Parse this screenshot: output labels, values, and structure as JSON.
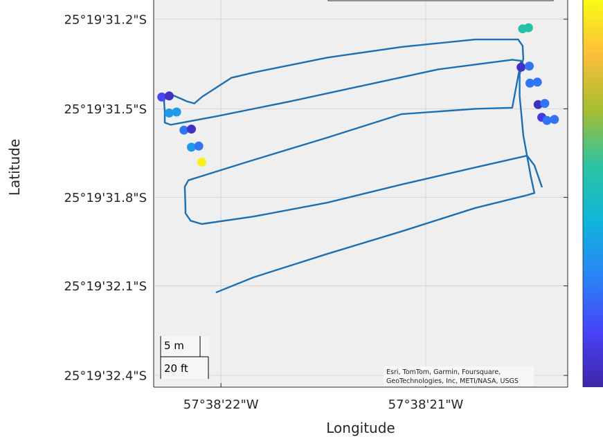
{
  "chart_data": {
    "type": "scatter",
    "title": "",
    "xlabel": "Longitude",
    "ylabel": "Latitude",
    "xlim_deg": [
      -57.639535,
      -57.638975
    ],
    "ylim_deg": [
      -25.325678,
      -25.325315
    ],
    "x_ticks": [
      {
        "value": -57.639444,
        "label": "57°38'22\"W"
      },
      {
        "value": -57.639167,
        "label": "57°38'21\"W"
      }
    ],
    "y_ticks": [
      {
        "value": -25.325333,
        "label": "25°19'31.2\"S"
      },
      {
        "value": -25.325417,
        "label": "25°19'31.5\"S"
      },
      {
        "value": -25.3255,
        "label": "25°19'31.8\"S"
      },
      {
        "value": -25.325583,
        "label": "25°19'32.1\"S"
      },
      {
        "value": -25.325667,
        "label": "25°19'32.4\"S"
      }
    ],
    "grid": true,
    "basemap_color": "#efefef",
    "colorbar": {
      "location": "right",
      "colors": [
        "#3e26a8",
        "#4743f8",
        "#2a84f4",
        "#10b5da",
        "#2bc3a2",
        "#a5be31",
        "#fbbe3a",
        "#f9fb14"
      ]
    },
    "track": {
      "color": "#1a6fb5",
      "points": [
        [
          -57.63945,
          -25.325589
        ],
        [
          -57.6394,
          -25.325575
        ],
        [
          -57.6393,
          -25.325553
        ],
        [
          -57.6392,
          -25.325532
        ],
        [
          -57.6391,
          -25.32551
        ],
        [
          -57.63903,
          -25.325498
        ],
        [
          -57.63902,
          -25.325496
        ],
        [
          -57.639025,
          -25.32548
        ],
        [
          -57.639035,
          -25.325442
        ],
        [
          -57.63904,
          -25.325405
        ],
        [
          -57.63904,
          -25.325385
        ],
        [
          -57.639035,
          -25.32537
        ],
        [
          -57.639036,
          -25.325358
        ],
        [
          -57.639042,
          -25.325352
        ],
        [
          -57.6391,
          -25.325352
        ],
        [
          -57.6392,
          -25.325359
        ],
        [
          -57.6393,
          -25.325369
        ],
        [
          -57.6394,
          -25.325383
        ],
        [
          -57.63943,
          -25.325388
        ],
        [
          -57.63947,
          -25.325406
        ],
        [
          -57.63948,
          -25.325412
        ],
        [
          -57.63949,
          -25.32541
        ],
        [
          -57.63951,
          -25.325404
        ],
        [
          -57.63952,
          -25.325404
        ],
        [
          -57.639521,
          -25.32541
        ],
        [
          -57.63952,
          -25.32542
        ],
        [
          -57.63952,
          -25.32543
        ],
        [
          -57.639512,
          -25.325432
        ],
        [
          -57.63945,
          -25.325424
        ],
        [
          -57.63935,
          -25.32541
        ],
        [
          -57.63925,
          -25.325395
        ],
        [
          -57.63915,
          -25.32538
        ],
        [
          -57.63905,
          -25.325371
        ],
        [
          -57.639038,
          -25.325372
        ],
        [
          -57.63905,
          -25.325416
        ],
        [
          -57.6391,
          -25.325417
        ],
        [
          -57.6392,
          -25.325422
        ],
        [
          -57.6393,
          -25.325444
        ],
        [
          -57.6394,
          -25.325465
        ],
        [
          -57.639488,
          -25.325484
        ],
        [
          -57.639493,
          -25.32549
        ],
        [
          -57.639492,
          -25.32551
        ],
        [
          -57.639492,
          -25.325515
        ],
        [
          -57.639485,
          -25.325522
        ],
        [
          -57.63947,
          -25.325525
        ],
        [
          -57.6394,
          -25.325518
        ],
        [
          -57.6393,
          -25.325505
        ],
        [
          -57.6392,
          -25.325488
        ],
        [
          -57.6391,
          -25.325472
        ],
        [
          -57.63903,
          -25.325461
        ],
        [
          -57.63902,
          -25.32547
        ],
        [
          -57.63901,
          -25.32549
        ]
      ]
    },
    "points": [
      {
        "lon": -57.639036,
        "lat": -25.325342,
        "level": 0.55
      },
      {
        "lon": -57.639028,
        "lat": -25.325341,
        "level": 0.55
      },
      {
        "lon": -57.639038,
        "lat": -25.325378,
        "level": 0.05
      },
      {
        "lon": -57.639027,
        "lat": -25.325377,
        "level": 0.25
      },
      {
        "lon": -57.639026,
        "lat": -25.325393,
        "level": 0.25
      },
      {
        "lon": -57.639016,
        "lat": -25.325392,
        "level": 0.25
      },
      {
        "lon": -57.639015,
        "lat": -25.325413,
        "level": 0.05
      },
      {
        "lon": -57.639006,
        "lat": -25.325412,
        "level": 0.25
      },
      {
        "lon": -57.63901,
        "lat": -25.325425,
        "level": 0.1
      },
      {
        "lon": -57.639003,
        "lat": -25.325428,
        "level": 0.25
      },
      {
        "lon": -57.638993,
        "lat": -25.325427,
        "level": 0.25
      },
      {
        "lon": -57.639524,
        "lat": -25.325406,
        "level": 0.15
      },
      {
        "lon": -57.639514,
        "lat": -25.325405,
        "level": 0.05
      },
      {
        "lon": -57.639514,
        "lat": -25.325421,
        "level": 0.35
      },
      {
        "lon": -57.639504,
        "lat": -25.32542,
        "level": 0.35
      },
      {
        "lon": -57.639494,
        "lat": -25.325437,
        "level": 0.25
      },
      {
        "lon": -57.639484,
        "lat": -25.325436,
        "level": 0.05
      },
      {
        "lon": -57.639484,
        "lat": -25.325453,
        "level": 0.35
      },
      {
        "lon": -57.639474,
        "lat": -25.325452,
        "level": 0.25
      },
      {
        "lon": -57.63947,
        "lat": -25.325467,
        "level": 0.98
      }
    ],
    "scalebar": {
      "labels": [
        "5 m",
        "20 ft"
      ]
    },
    "attribution": [
      "Esri, TomTom, Garmin, Foursquare,",
      "GeoTechnologies, Inc, METI/NASA, USGS"
    ]
  }
}
